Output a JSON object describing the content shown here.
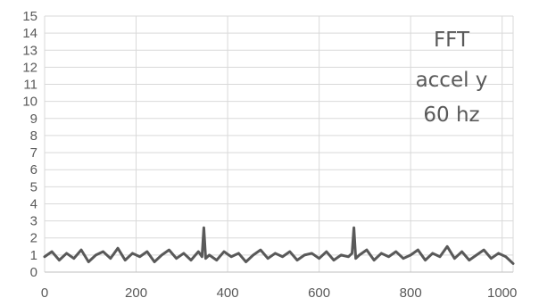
{
  "chart_data": {
    "type": "line",
    "title": "",
    "xlabel": "",
    "ylabel": "",
    "xlim": [
      0,
      1024
    ],
    "ylim": [
      0,
      15
    ],
    "x_ticks": [
      0,
      200,
      400,
      600,
      800,
      1000
    ],
    "y_ticks": [
      0,
      1,
      2,
      3,
      4,
      5,
      6,
      7,
      8,
      9,
      10,
      11,
      12,
      13,
      14,
      15
    ],
    "grid": true,
    "legend": "none",
    "annotations": [
      "FFT",
      "accel y",
      "60 hz"
    ],
    "series": [
      {
        "color": "#595959",
        "x": [
          0,
          16,
          32,
          48,
          64,
          80,
          96,
          112,
          128,
          144,
          160,
          176,
          192,
          208,
          224,
          240,
          256,
          272,
          288,
          304,
          320,
          336,
          344,
          348,
          352,
          360,
          376,
          392,
          408,
          424,
          440,
          456,
          472,
          488,
          504,
          520,
          536,
          552,
          568,
          584,
          600,
          616,
          632,
          648,
          664,
          672,
          676,
          680,
          688,
          704,
          720,
          736,
          752,
          768,
          784,
          800,
          816,
          832,
          848,
          864,
          880,
          896,
          912,
          928,
          944,
          960,
          976,
          992,
          1008,
          1024
        ],
        "values": [
          0.9,
          1.2,
          0.7,
          1.1,
          0.8,
          1.3,
          0.6,
          1.0,
          1.2,
          0.8,
          1.4,
          0.7,
          1.1,
          0.9,
          1.2,
          0.6,
          1.0,
          1.3,
          0.8,
          1.1,
          0.7,
          1.2,
          0.9,
          2.6,
          0.8,
          1.0,
          0.7,
          1.2,
          0.9,
          1.1,
          0.6,
          1.0,
          1.3,
          0.8,
          1.1,
          0.9,
          1.2,
          0.7,
          1.0,
          1.1,
          0.8,
          1.2,
          0.7,
          1.0,
          0.9,
          1.1,
          2.6,
          0.8,
          1.0,
          1.3,
          0.7,
          1.1,
          0.9,
          1.2,
          0.8,
          1.0,
          1.3,
          0.7,
          1.1,
          0.9,
          1.5,
          0.8,
          1.2,
          0.7,
          1.0,
          1.3,
          0.8,
          1.1,
          0.9,
          0.5
        ]
      }
    ]
  }
}
